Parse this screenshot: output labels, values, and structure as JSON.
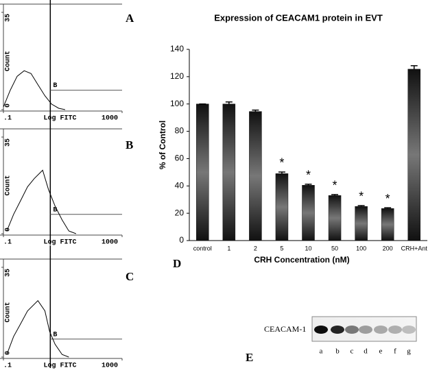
{
  "chart_data": [
    {
      "type": "line",
      "panel_label": "A",
      "ylabel": "Count",
      "xlabel": "Log FITC",
      "xscale": "log",
      "xlim": [
        0.1,
        1000
      ],
      "xticks": [
        {
          "value": 0.1,
          "label": ".1"
        },
        1000
      ],
      "ylim": [
        0,
        35
      ],
      "yticks": [
        0,
        35
      ],
      "gate": 3.8,
      "gate_label": "B",
      "series": [
        {
          "color": "#000000",
          "x": [
            0.1,
            0.17,
            0.29,
            0.5,
            0.85,
            1.45,
            2.5,
            4.2,
            7.3,
            12
          ],
          "values": [
            1,
            7,
            12,
            14,
            13,
            9,
            5,
            2,
            0.5,
            0
          ]
        }
      ]
    },
    {
      "type": "line",
      "panel_label": "B",
      "ylabel": "Count",
      "xlabel": "Log FITC",
      "xscale": "log",
      "xlim": [
        0.1,
        1000
      ],
      "xticks": [
        {
          "value": 0.1,
          "label": ".1"
        },
        1000
      ],
      "ylim": [
        0,
        35
      ],
      "yticks": [
        0,
        35
      ],
      "gate": 3.8,
      "gate_label": "B",
      "series": [
        {
          "color": "#000000",
          "x": [
            0.13,
            0.22,
            0.38,
            0.65,
            1.1,
            2.1,
            3.3,
            5.5,
            9.5,
            16,
            28
          ],
          "values": [
            1,
            7,
            12,
            17,
            20,
            23,
            16,
            10,
            5,
            1,
            0
          ]
        }
      ]
    },
    {
      "type": "line",
      "panel_label": "C",
      "ylabel": "Count",
      "xlabel": "Log FITC",
      "xscale": "log",
      "xlim": [
        0.1,
        1000
      ],
      "xticks": [
        {
          "value": 0.1,
          "label": ".1"
        },
        1000
      ],
      "ylim": [
        0,
        35
      ],
      "yticks": [
        0,
        35
      ],
      "gate": 3.8,
      "gate_label": "B",
      "series": [
        {
          "color": "#000000",
          "x": [
            0.13,
            0.22,
            0.38,
            0.65,
            1.45,
            2.5,
            3.6,
            5.5,
            9.5,
            16
          ],
          "values": [
            1,
            8,
            13,
            18,
            22,
            18,
            10,
            5,
            1,
            0
          ]
        }
      ]
    },
    {
      "type": "bar",
      "panel_label": "D",
      "title": "Expression of CEACAM1 protein in EVT",
      "ylabel": "% of Control",
      "xlabel": "CRH Concentration (nM)",
      "categories": [
        "control",
        "1",
        "2",
        "5",
        "10",
        "50",
        "100",
        "200",
        "CRH+Ant"
      ],
      "values": [
        100,
        100,
        94.5,
        49,
        40.5,
        33,
        25,
        23.5,
        125.5
      ],
      "errors": [
        0,
        1.5,
        1,
        1.2,
        0.8,
        0.7,
        0.6,
        0.5,
        2.5
      ],
      "markers": [
        null,
        null,
        null,
        "*",
        "*",
        "*",
        "*",
        "*",
        null
      ],
      "ylim": [
        0,
        140
      ],
      "yticks": [
        0,
        20,
        40,
        60,
        80,
        100,
        120,
        140
      ],
      "color": "#111111"
    },
    {
      "type": "blot",
      "panel_label": "E",
      "row_label": "CEACAM-1",
      "lanes": [
        "a",
        "b",
        "c",
        "d",
        "e",
        "f",
        "g"
      ]
    }
  ]
}
